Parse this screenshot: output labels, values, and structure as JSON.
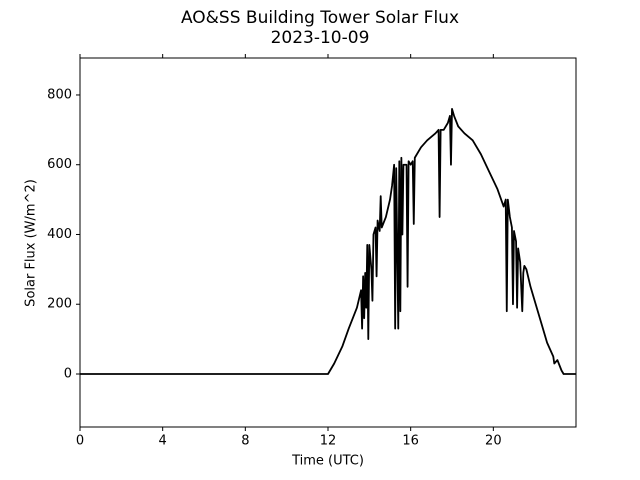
{
  "chart_data": {
    "type": "line",
    "title": "AO&SS Building Tower Solar Flux",
    "subtitle": "2023-10-09",
    "x_label": "Time (UTC)",
    "y_label": "Solar Flux (W/m^2)",
    "xlim": [
      0,
      24
    ],
    "ylim": [
      -152,
      906
    ],
    "xticks": [
      0,
      4,
      8,
      12,
      16,
      20
    ],
    "yticks": [
      0,
      200,
      400,
      600,
      800
    ],
    "series": [
      {
        "color": "#000000",
        "x": [
          0,
          12.0,
          12.3,
          12.7,
          13.0,
          13.4,
          13.6,
          13.65,
          13.7,
          13.75,
          13.8,
          13.85,
          13.9,
          13.95,
          14.0,
          14.1,
          14.15,
          14.2,
          14.3,
          14.35,
          14.4,
          14.5,
          14.55,
          14.6,
          14.8,
          15.0,
          15.1,
          15.2,
          15.25,
          15.3,
          15.4,
          15.45,
          15.5,
          15.55,
          15.6,
          15.65,
          15.8,
          15.85,
          15.9,
          16.0,
          16.1,
          16.15,
          16.2,
          16.5,
          16.8,
          17.0,
          17.2,
          17.35,
          17.4,
          17.45,
          17.6,
          17.8,
          17.9,
          17.95,
          18.0,
          18.1,
          18.3,
          18.6,
          19.0,
          19.4,
          19.8,
          20.2,
          20.5,
          20.6,
          20.65,
          20.7,
          20.8,
          20.9,
          20.95,
          21.0,
          21.1,
          21.15,
          21.2,
          21.3,
          21.4,
          21.45,
          21.5,
          21.6,
          21.8,
          22.0,
          22.3,
          22.6,
          22.9,
          22.95,
          23.1,
          23.3,
          23.4,
          24
        ],
        "values": [
          0,
          0,
          30,
          80,
          130,
          190,
          240,
          130,
          280,
          160,
          290,
          190,
          370,
          100,
          370,
          300,
          210,
          400,
          420,
          280,
          440,
          410,
          510,
          420,
          450,
          500,
          540,
          600,
          130,
          590,
          130,
          610,
          180,
          620,
          400,
          600,
          600,
          250,
          610,
          600,
          610,
          430,
          620,
          650,
          670,
          680,
          690,
          700,
          450,
          700,
          700,
          720,
          740,
          600,
          760,
          740,
          710,
          690,
          670,
          630,
          580,
          530,
          480,
          500,
          180,
          500,
          450,
          420,
          200,
          410,
          380,
          190,
          360,
          320,
          180,
          290,
          310,
          300,
          250,
          210,
          150,
          90,
          50,
          30,
          40,
          10,
          0,
          0
        ]
      }
    ]
  }
}
